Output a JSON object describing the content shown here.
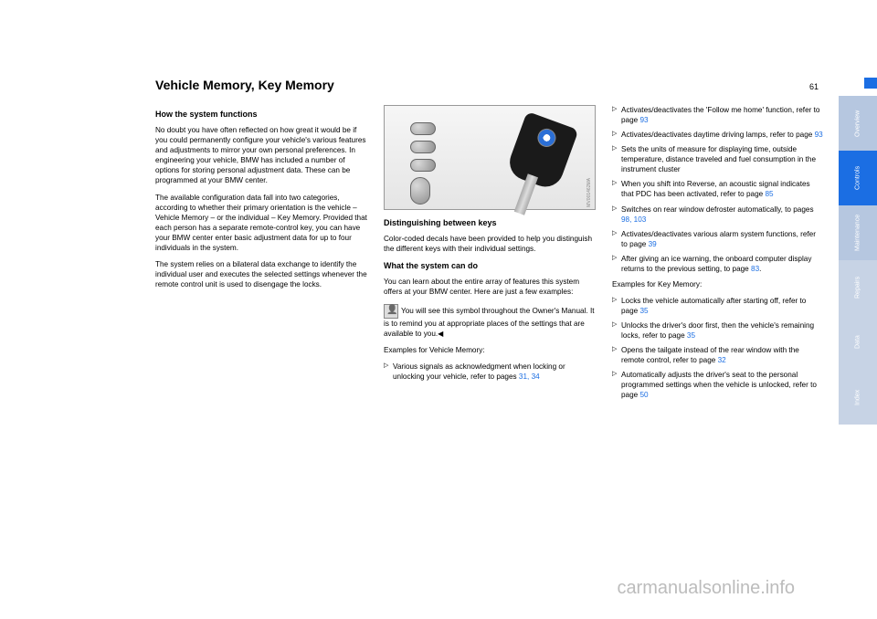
{
  "page_number": "61",
  "title": "Vehicle Memory, Key Memory",
  "side_tabs": [
    {
      "label": "Overview",
      "bg": "#b6c7e0",
      "active": false
    },
    {
      "label": "Controls",
      "bg": "#1b6ee3",
      "active": true
    },
    {
      "label": "Maintenance",
      "bg": "#b6c7e0",
      "active": false
    },
    {
      "label": "Repairs",
      "bg": "#c7d3e5",
      "active": false
    },
    {
      "label": "Data",
      "bg": "#c7d3e5",
      "active": false
    },
    {
      "label": "Index",
      "bg": "#c7d3e5",
      "active": false
    }
  ],
  "col1": {
    "h1": "How the system functions",
    "p1": "No doubt you have often reflected on how great it would be if you could permanently configure your vehicle's various features and adjustments to mirror your own personal preferences. In engineering your vehicle, BMW has included a number of options for storing personal adjustment data. These can be programmed at your BMW center.",
    "p2": "The available configuration data fall into two categories, according to whether their primary orientation is the vehicle – Vehicle Memory – or the individual – Key Memory. Provided that each person has a separate remote-control key, you can have your BMW center enter basic adjustment data for up to four individuals in the system.",
    "p3": "The system relies on a bilateral data exchange to identify the individual user and executes the selected settings whenever the remote control unit is used to disengage the locks."
  },
  "col2": {
    "img_code": "MV001462MA",
    "h1": "Distinguishing between keys",
    "p1": "Color-coded decals have been provided to help you distinguish the different keys with their individual settings.",
    "h2": "What the system can do",
    "p2": "You can learn about the entire array of features this system offers at your BMW center. Here are just a few examples:",
    "note": "You will see this symbol throughout the Owner's Manual. It is to remind you at appropriate places of the settings that are available to you.◀",
    "ex_label": "Examples for Vehicle Memory:",
    "bullets": [
      {
        "text": "Various signals as acknowledgment when locking or unlocking your vehicle, refer to pages ",
        "refs": "31, 34"
      }
    ]
  },
  "col3": {
    "bullets1": [
      {
        "text": "Activates/deactivates the 'Follow me home' function, refer to page ",
        "refs": "93"
      },
      {
        "text": "Activates/deactivates daytime driving lamps, refer to page ",
        "refs": "93"
      },
      {
        "text": "Sets the units of measure for displaying time, outside temperature, distance traveled and fuel consumption in the instrument cluster",
        "refs": ""
      },
      {
        "text": "When you shift into Reverse, an acoustic signal indicates that PDC has been activated, refer to page ",
        "refs": "85"
      },
      {
        "text": "Switches on rear window defroster automatically, to pages ",
        "refs": "98, 103"
      },
      {
        "text": "Activates/deactivates various alarm system functions, refer to page ",
        "refs": "39"
      },
      {
        "text": "After giving an ice warning, the onboard computer display returns to the previous setting, to page ",
        "refs": "83",
        "suffix": "."
      }
    ],
    "ex_label": "Examples for Key Memory:",
    "bullets2": [
      {
        "text": "Locks the vehicle automatically after starting off, refer to page ",
        "refs": "35"
      },
      {
        "text": "Unlocks the driver's door first, then the vehicle's remaining locks, refer to page ",
        "refs": "35"
      },
      {
        "text": "Opens the tailgate instead of the rear window with the remote control, refer to page ",
        "refs": "32"
      },
      {
        "text": "Automatically adjusts the driver's seat to the personal programmed settings when the vehicle is unlocked, refer to page ",
        "refs": "50"
      }
    ]
  },
  "watermark": "carmanualsonline.info"
}
